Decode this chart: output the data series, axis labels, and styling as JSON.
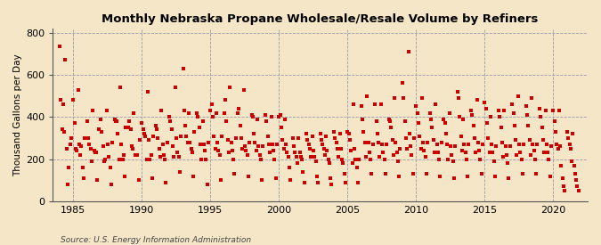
{
  "title": "Monthly Nebraska Propane Wholesale/Resale Volume by Refiners",
  "ylabel": "Thousand Gallons per Day",
  "source": "Source: U.S. Energy Information Administration",
  "background_color": "#f5e6c8",
  "dot_color": "#cc0000",
  "xlim": [
    1983.5,
    2022.5
  ],
  "ylim": [
    0,
    820
  ],
  "yticks": [
    0,
    200,
    400,
    600,
    800
  ],
  "xticks": [
    1985,
    1990,
    1995,
    2000,
    2005,
    2010,
    2015,
    2020
  ],
  "data_points": [
    [
      1984.0,
      735
    ],
    [
      1984.08,
      480
    ],
    [
      1984.17,
      340
    ],
    [
      1984.25,
      460
    ],
    [
      1984.33,
      330
    ],
    [
      1984.42,
      670
    ],
    [
      1984.5,
      250
    ],
    [
      1984.58,
      80
    ],
    [
      1984.67,
      160
    ],
    [
      1984.75,
      270
    ],
    [
      1984.83,
      300
    ],
    [
      1985.0,
      480
    ],
    [
      1985.08,
      370
    ],
    [
      1985.17,
      250
    ],
    [
      1985.25,
      240
    ],
    [
      1985.33,
      530
    ],
    [
      1985.42,
      270
    ],
    [
      1985.5,
      220
    ],
    [
      1985.58,
      260
    ],
    [
      1985.67,
      160
    ],
    [
      1985.75,
      110
    ],
    [
      1985.83,
      300
    ],
    [
      1986.0,
      380
    ],
    [
      1986.08,
      300
    ],
    [
      1986.17,
      270
    ],
    [
      1986.25,
      250
    ],
    [
      1986.33,
      190
    ],
    [
      1986.42,
      430
    ],
    [
      1986.5,
      240
    ],
    [
      1986.58,
      230
    ],
    [
      1986.67,
      230
    ],
    [
      1986.75,
      100
    ],
    [
      1986.83,
      340
    ],
    [
      1987.0,
      390
    ],
    [
      1987.08,
      330
    ],
    [
      1987.17,
      260
    ],
    [
      1987.25,
      190
    ],
    [
      1987.33,
      200
    ],
    [
      1987.42,
      430
    ],
    [
      1987.5,
      270
    ],
    [
      1987.58,
      210
    ],
    [
      1987.67,
      160
    ],
    [
      1987.75,
      80
    ],
    [
      1987.83,
      280
    ],
    [
      1988.0,
      390
    ],
    [
      1988.08,
      380
    ],
    [
      1988.17,
      380
    ],
    [
      1988.25,
      320
    ],
    [
      1988.33,
      200
    ],
    [
      1988.42,
      540
    ],
    [
      1988.5,
      270
    ],
    [
      1988.58,
      200
    ],
    [
      1988.67,
      220
    ],
    [
      1988.75,
      120
    ],
    [
      1988.83,
      350
    ],
    [
      1989.0,
      350
    ],
    [
      1989.08,
      380
    ],
    [
      1989.17,
      340
    ],
    [
      1989.25,
      260
    ],
    [
      1989.33,
      250
    ],
    [
      1989.42,
      420
    ],
    [
      1989.5,
      220
    ],
    [
      1989.58,
      220
    ],
    [
      1989.67,
      220
    ],
    [
      1989.75,
      100
    ],
    [
      1989.83,
      290
    ],
    [
      1990.0,
      370
    ],
    [
      1990.08,
      340
    ],
    [
      1990.17,
      320
    ],
    [
      1990.25,
      310
    ],
    [
      1990.33,
      200
    ],
    [
      1990.42,
      520
    ],
    [
      1990.5,
      290
    ],
    [
      1990.58,
      200
    ],
    [
      1990.67,
      220
    ],
    [
      1990.75,
      110
    ],
    [
      1990.83,
      310
    ],
    [
      1991.0,
      360
    ],
    [
      1991.08,
      340
    ],
    [
      1991.17,
      300
    ],
    [
      1991.25,
      250
    ],
    [
      1991.33,
      210
    ],
    [
      1991.42,
      430
    ],
    [
      1991.5,
      270
    ],
    [
      1991.58,
      220
    ],
    [
      1991.67,
      200
    ],
    [
      1991.75,
      90
    ],
    [
      1991.83,
      280
    ],
    [
      1992.0,
      400
    ],
    [
      1992.08,
      380
    ],
    [
      1992.17,
      340
    ],
    [
      1992.25,
      260
    ],
    [
      1992.33,
      210
    ],
    [
      1992.42,
      540
    ],
    [
      1992.5,
      300
    ],
    [
      1992.58,
      230
    ],
    [
      1992.67,
      210
    ],
    [
      1992.75,
      140
    ],
    [
      1992.83,
      310
    ],
    [
      1993.0,
      630
    ],
    [
      1993.08,
      430
    ],
    [
      1993.17,
      360
    ],
    [
      1993.25,
      310
    ],
    [
      1993.33,
      280
    ],
    [
      1993.42,
      420
    ],
    [
      1993.5,
      280
    ],
    [
      1993.58,
      250
    ],
    [
      1993.67,
      230
    ],
    [
      1993.75,
      120
    ],
    [
      1993.83,
      330
    ],
    [
      1994.0,
      420
    ],
    [
      1994.08,
      400
    ],
    [
      1994.17,
      350
    ],
    [
      1994.25,
      270
    ],
    [
      1994.33,
      200
    ],
    [
      1994.42,
      380
    ],
    [
      1994.5,
      270
    ],
    [
      1994.58,
      240
    ],
    [
      1994.67,
      200
    ],
    [
      1994.75,
      80
    ],
    [
      1994.83,
      280
    ],
    [
      1995.0,
      430
    ],
    [
      1995.08,
      460
    ],
    [
      1995.17,
      400
    ],
    [
      1995.25,
      310
    ],
    [
      1995.33,
      250
    ],
    [
      1995.42,
      420
    ],
    [
      1995.5,
      280
    ],
    [
      1995.58,
      240
    ],
    [
      1995.67,
      220
    ],
    [
      1995.75,
      100
    ],
    [
      1995.83,
      310
    ],
    [
      1996.0,
      420
    ],
    [
      1996.08,
      480
    ],
    [
      1996.17,
      380
    ],
    [
      1996.25,
      290
    ],
    [
      1996.33,
      230
    ],
    [
      1996.42,
      540
    ],
    [
      1996.5,
      280
    ],
    [
      1996.58,
      240
    ],
    [
      1996.67,
      200
    ],
    [
      1996.75,
      130
    ],
    [
      1996.83,
      300
    ],
    [
      1997.0,
      420
    ],
    [
      1997.08,
      440
    ],
    [
      1997.17,
      360
    ],
    [
      1997.25,
      300
    ],
    [
      1997.33,
      250
    ],
    [
      1997.42,
      530
    ],
    [
      1997.5,
      260
    ],
    [
      1997.58,
      240
    ],
    [
      1997.67,
      220
    ],
    [
      1997.75,
      120
    ],
    [
      1997.83,
      280
    ],
    [
      1998.0,
      410
    ],
    [
      1998.08,
      400
    ],
    [
      1998.17,
      320
    ],
    [
      1998.25,
      280
    ],
    [
      1998.33,
      240
    ],
    [
      1998.42,
      390
    ],
    [
      1998.5,
      260
    ],
    [
      1998.58,
      220
    ],
    [
      1998.67,
      200
    ],
    [
      1998.75,
      100
    ],
    [
      1998.83,
      260
    ],
    [
      1999.0,
      410
    ],
    [
      1999.08,
      380
    ],
    [
      1999.17,
      310
    ],
    [
      1999.25,
      270
    ],
    [
      1999.33,
      230
    ],
    [
      1999.42,
      400
    ],
    [
      1999.5,
      270
    ],
    [
      1999.58,
      240
    ],
    [
      1999.67,
      200
    ],
    [
      1999.75,
      110
    ],
    [
      1999.83,
      270
    ],
    [
      2000.0,
      400
    ],
    [
      2000.08,
      410
    ],
    [
      2000.17,
      350
    ],
    [
      2000.25,
      290
    ],
    [
      2000.33,
      250
    ],
    [
      2000.42,
      390
    ],
    [
      2000.5,
      270
    ],
    [
      2000.58,
      230
    ],
    [
      2000.67,
      210
    ],
    [
      2000.75,
      160
    ],
    [
      2000.83,
      100
    ],
    [
      2001.0,
      300
    ],
    [
      2001.08,
      260
    ],
    [
      2001.17,
      230
    ],
    [
      2001.25,
      210
    ],
    [
      2001.33,
      180
    ],
    [
      2001.42,
      300
    ],
    [
      2001.5,
      230
    ],
    [
      2001.58,
      210
    ],
    [
      2001.67,
      200
    ],
    [
      2001.75,
      140
    ],
    [
      2001.83,
      90
    ],
    [
      2002.0,
      320
    ],
    [
      2002.08,
      290
    ],
    [
      2002.17,
      270
    ],
    [
      2002.25,
      250
    ],
    [
      2002.33,
      210
    ],
    [
      2002.42,
      310
    ],
    [
      2002.5,
      240
    ],
    [
      2002.58,
      210
    ],
    [
      2002.67,
      190
    ],
    [
      2002.75,
      120
    ],
    [
      2002.83,
      90
    ],
    [
      2003.0,
      320
    ],
    [
      2003.08,
      290
    ],
    [
      2003.17,
      270
    ],
    [
      2003.25,
      250
    ],
    [
      2003.33,
      220
    ],
    [
      2003.42,
      310
    ],
    [
      2003.5,
      240
    ],
    [
      2003.58,
      200
    ],
    [
      2003.67,
      180
    ],
    [
      2003.75,
      110
    ],
    [
      2003.83,
      80
    ],
    [
      2004.0,
      330
    ],
    [
      2004.08,
      300
    ],
    [
      2004.17,
      280
    ],
    [
      2004.25,
      250
    ],
    [
      2004.33,
      210
    ],
    [
      2004.42,
      320
    ],
    [
      2004.5,
      250
    ],
    [
      2004.58,
      200
    ],
    [
      2004.67,
      180
    ],
    [
      2004.75,
      130
    ],
    [
      2004.83,
      90
    ],
    [
      2005.0,
      330
    ],
    [
      2005.08,
      320
    ],
    [
      2005.17,
      290
    ],
    [
      2005.25,
      240
    ],
    [
      2005.33,
      180
    ],
    [
      2005.42,
      460
    ],
    [
      2005.5,
      250
    ],
    [
      2005.58,
      200
    ],
    [
      2005.67,
      160
    ],
    [
      2005.75,
      90
    ],
    [
      2005.83,
      200
    ],
    [
      2006.0,
      450
    ],
    [
      2006.08,
      390
    ],
    [
      2006.17,
      330
    ],
    [
      2006.25,
      280
    ],
    [
      2006.33,
      210
    ],
    [
      2006.42,
      500
    ],
    [
      2006.5,
      280
    ],
    [
      2006.58,
      230
    ],
    [
      2006.67,
      200
    ],
    [
      2006.75,
      130
    ],
    [
      2006.83,
      270
    ],
    [
      2007.0,
      460
    ],
    [
      2007.08,
      380
    ],
    [
      2007.17,
      320
    ],
    [
      2007.25,
      280
    ],
    [
      2007.33,
      210
    ],
    [
      2007.42,
      460
    ],
    [
      2007.5,
      270
    ],
    [
      2007.58,
      230
    ],
    [
      2007.67,
      200
    ],
    [
      2007.75,
      130
    ],
    [
      2007.83,
      270
    ],
    [
      2008.0,
      390
    ],
    [
      2008.08,
      380
    ],
    [
      2008.17,
      350
    ],
    [
      2008.25,
      290
    ],
    [
      2008.33,
      220
    ],
    [
      2008.42,
      490
    ],
    [
      2008.5,
      280
    ],
    [
      2008.58,
      230
    ],
    [
      2008.67,
      190
    ],
    [
      2008.75,
      120
    ],
    [
      2008.83,
      250
    ],
    [
      2009.0,
      560
    ],
    [
      2009.08,
      490
    ],
    [
      2009.17,
      380
    ],
    [
      2009.25,
      300
    ],
    [
      2009.33,
      250
    ],
    [
      2009.42,
      710
    ],
    [
      2009.5,
      320
    ],
    [
      2009.58,
      260
    ],
    [
      2009.67,
      220
    ],
    [
      2009.75,
      130
    ],
    [
      2009.83,
      300
    ],
    [
      2010.0,
      450
    ],
    [
      2010.08,
      420
    ],
    [
      2010.17,
      370
    ],
    [
      2010.25,
      310
    ],
    [
      2010.33,
      250
    ],
    [
      2010.42,
      490
    ],
    [
      2010.5,
      280
    ],
    [
      2010.58,
      240
    ],
    [
      2010.67,
      210
    ],
    [
      2010.75,
      130
    ],
    [
      2010.83,
      280
    ],
    [
      2011.0,
      420
    ],
    [
      2011.08,
      390
    ],
    [
      2011.17,
      350
    ],
    [
      2011.25,
      290
    ],
    [
      2011.33,
      230
    ],
    [
      2011.42,
      460
    ],
    [
      2011.5,
      270
    ],
    [
      2011.58,
      230
    ],
    [
      2011.67,
      200
    ],
    [
      2011.75,
      120
    ],
    [
      2011.83,
      280
    ],
    [
      2012.0,
      390
    ],
    [
      2012.08,
      370
    ],
    [
      2012.17,
      320
    ],
    [
      2012.25,
      270
    ],
    [
      2012.33,
      200
    ],
    [
      2012.42,
      420
    ],
    [
      2012.5,
      260
    ],
    [
      2012.58,
      220
    ],
    [
      2012.67,
      190
    ],
    [
      2012.75,
      110
    ],
    [
      2012.83,
      260
    ],
    [
      2013.0,
      520
    ],
    [
      2013.08,
      490
    ],
    [
      2013.17,
      400
    ],
    [
      2013.25,
      310
    ],
    [
      2013.33,
      240
    ],
    [
      2013.42,
      390
    ],
    [
      2013.5,
      270
    ],
    [
      2013.58,
      230
    ],
    [
      2013.67,
      200
    ],
    [
      2013.75,
      120
    ],
    [
      2013.83,
      270
    ],
    [
      2014.0,
      430
    ],
    [
      2014.08,
      410
    ],
    [
      2014.17,
      360
    ],
    [
      2014.25,
      300
    ],
    [
      2014.33,
      230
    ],
    [
      2014.42,
      480
    ],
    [
      2014.5,
      280
    ],
    [
      2014.58,
      240
    ],
    [
      2014.67,
      200
    ],
    [
      2014.75,
      130
    ],
    [
      2014.83,
      270
    ],
    [
      2015.0,
      470
    ],
    [
      2015.08,
      440
    ],
    [
      2015.17,
      370
    ],
    [
      2015.25,
      300
    ],
    [
      2015.33,
      230
    ],
    [
      2015.42,
      400
    ],
    [
      2015.5,
      270
    ],
    [
      2015.58,
      230
    ],
    [
      2015.67,
      190
    ],
    [
      2015.75,
      120
    ],
    [
      2015.83,
      260
    ],
    [
      2016.0,
      430
    ],
    [
      2016.08,
      400
    ],
    [
      2016.17,
      350
    ],
    [
      2016.25,
      280
    ],
    [
      2016.33,
      210
    ],
    [
      2016.42,
      430
    ],
    [
      2016.5,
      260
    ],
    [
      2016.58,
      220
    ],
    [
      2016.67,
      180
    ],
    [
      2016.75,
      110
    ],
    [
      2016.83,
      260
    ],
    [
      2017.0,
      460
    ],
    [
      2017.08,
      420
    ],
    [
      2017.17,
      360
    ],
    [
      2017.25,
      290
    ],
    [
      2017.33,
      220
    ],
    [
      2017.42,
      500
    ],
    [
      2017.5,
      270
    ],
    [
      2017.58,
      230
    ],
    [
      2017.67,
      200
    ],
    [
      2017.75,
      130
    ],
    [
      2017.83,
      270
    ],
    [
      2018.0,
      450
    ],
    [
      2018.08,
      410
    ],
    [
      2018.17,
      360
    ],
    [
      2018.25,
      290
    ],
    [
      2018.33,
      220
    ],
    [
      2018.42,
      490
    ],
    [
      2018.5,
      270
    ],
    [
      2018.58,
      240
    ],
    [
      2018.67,
      200
    ],
    [
      2018.75,
      130
    ],
    [
      2018.83,
      270
    ],
    [
      2019.0,
      440
    ],
    [
      2019.08,
      400
    ],
    [
      2019.17,
      350
    ],
    [
      2019.25,
      290
    ],
    [
      2019.33,
      230
    ],
    [
      2019.42,
      430
    ],
    [
      2019.5,
      270
    ],
    [
      2019.58,
      230
    ],
    [
      2019.67,
      200
    ],
    [
      2019.75,
      120
    ],
    [
      2019.83,
      260
    ],
    [
      2020.0,
      430
    ],
    [
      2020.08,
      380
    ],
    [
      2020.17,
      330
    ],
    [
      2020.25,
      270
    ],
    [
      2020.33,
      250
    ],
    [
      2020.42,
      430
    ],
    [
      2020.5,
      260
    ],
    [
      2020.58,
      170
    ],
    [
      2020.67,
      110
    ],
    [
      2020.75,
      70
    ],
    [
      2020.83,
      50
    ],
    [
      2021.0,
      330
    ],
    [
      2021.08,
      300
    ],
    [
      2021.17,
      270
    ],
    [
      2021.25,
      250
    ],
    [
      2021.33,
      190
    ],
    [
      2021.42,
      320
    ],
    [
      2021.5,
      170
    ],
    [
      2021.58,
      130
    ],
    [
      2021.67,
      100
    ],
    [
      2021.75,
      70
    ],
    [
      2021.83,
      50
    ]
  ]
}
